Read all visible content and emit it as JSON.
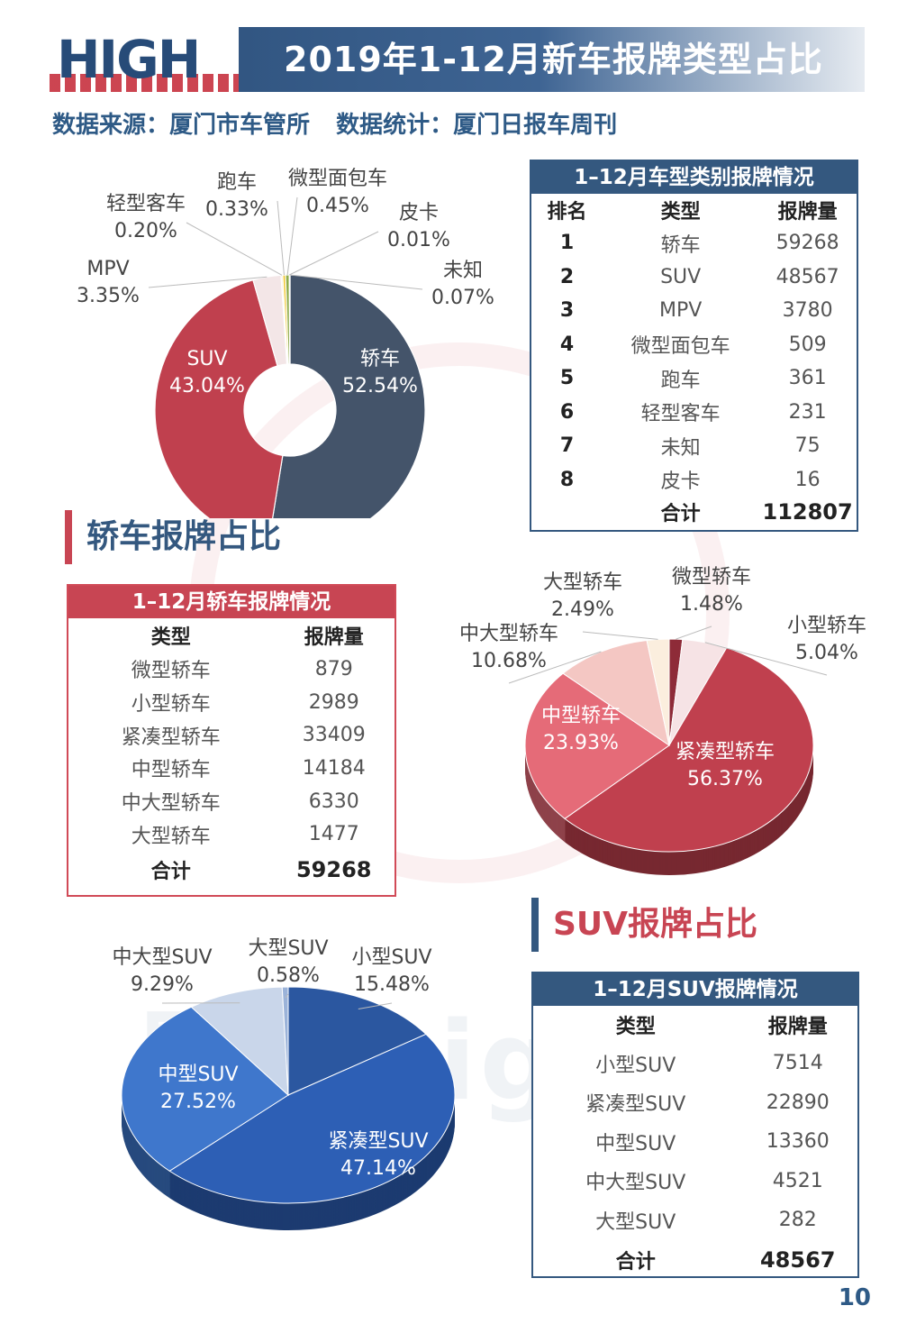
{
  "header": {
    "logo_text": "HIGH",
    "title": "2019年1-12月新车报牌类型占比"
  },
  "source": {
    "data_source": "数据来源：厦门市车管所",
    "data_stats": "数据统计：厦门日报车周刊"
  },
  "watermark_text": "厦门high车",
  "sections": {
    "sedan_heading": "轿车报牌占比",
    "suv_heading": "SUV报牌占比"
  },
  "page_number": "10",
  "colors": {
    "navy": "#44546a",
    "red": "#c0404e",
    "blue": "#2f5aa8",
    "accent": "#34587f"
  },
  "chart_data": [
    {
      "type": "pie",
      "title": "",
      "labels": [
        "轿车",
        "SUV",
        "MPV",
        "轻型客车",
        "跑车",
        "微型面包车",
        "皮卡",
        "未知"
      ],
      "values": [
        52.54,
        43.04,
        3.35,
        0.2,
        0.33,
        0.45,
        0.01,
        0.07
      ],
      "value_labels": [
        "52.54%",
        "43.04%",
        "3.35%",
        "0.20%",
        "0.33%",
        "0.45%",
        "0.01%",
        "0.07%"
      ],
      "colors": [
        "#44546a",
        "#c0404e",
        "#f3e6e7",
        "#fdf1cf",
        "#f2ca38",
        "#8fac4a",
        "#5a9bd5",
        "#3a3a3a"
      ]
    },
    {
      "type": "pie",
      "title": "",
      "labels": [
        "微型轿车",
        "小型轿车",
        "紧凑型轿车",
        "中型轿车",
        "中大型轿车",
        "大型轿车"
      ],
      "values": [
        1.48,
        5.04,
        56.37,
        23.93,
        10.68,
        2.49
      ],
      "value_labels": [
        "1.48%",
        "5.04%",
        "56.37%",
        "23.93%",
        "10.68%",
        "2.49%"
      ],
      "colors": [
        "#8e2b38",
        "#f6e3e5",
        "#c0404e",
        "#e56b78",
        "#f4c7c3",
        "#fbeede"
      ]
    },
    {
      "type": "pie",
      "title": "",
      "labels": [
        "小型SUV",
        "紧凑型SUV",
        "中型SUV",
        "中大型SUV",
        "大型SUV"
      ],
      "values": [
        15.48,
        47.14,
        27.52,
        9.29,
        0.58
      ],
      "value_labels": [
        "15.48%",
        "47.14%",
        "27.52%",
        "9.29%",
        "0.58%"
      ],
      "colors": [
        "#2b57a0",
        "#2d5fb5",
        "#3f77cc",
        "#c9d6ea",
        "#9bb3d9"
      ]
    }
  ],
  "tables": {
    "all": {
      "title": "1–12月车型类别报牌情况",
      "headers": [
        "排名",
        "类型",
        "报牌量"
      ],
      "rows": [
        [
          "1",
          "轿车",
          "59268"
        ],
        [
          "2",
          "SUV",
          "48567"
        ],
        [
          "3",
          "MPV",
          "3780"
        ],
        [
          "4",
          "微型面包车",
          "509"
        ],
        [
          "5",
          "跑车",
          "361"
        ],
        [
          "6",
          "轻型客车",
          "231"
        ],
        [
          "7",
          "未知",
          "75"
        ],
        [
          "8",
          "皮卡",
          "16"
        ]
      ],
      "total_label": "合计",
      "total_value": "112807"
    },
    "sedan": {
      "title": "1–12月轿车报牌情况",
      "headers": [
        "类型",
        "报牌量"
      ],
      "rows": [
        [
          "微型轿车",
          "879"
        ],
        [
          "小型轿车",
          "2989"
        ],
        [
          "紧凑型轿车",
          "33409"
        ],
        [
          "中型轿车",
          "14184"
        ],
        [
          "中大型轿车",
          "6330"
        ],
        [
          "大型轿车",
          "1477"
        ]
      ],
      "total_label": "合计",
      "total_value": "59268"
    },
    "suv": {
      "title": "1–12月SUV报牌情况",
      "headers": [
        "类型",
        "报牌量"
      ],
      "rows": [
        [
          "小型SUV",
          "7514"
        ],
        [
          "紧凑型SUV",
          "22890"
        ],
        [
          "中型SUV",
          "13360"
        ],
        [
          "中大型SUV",
          "4521"
        ],
        [
          "大型SUV",
          "282"
        ]
      ],
      "total_label": "合计",
      "total_value": "48567"
    }
  }
}
